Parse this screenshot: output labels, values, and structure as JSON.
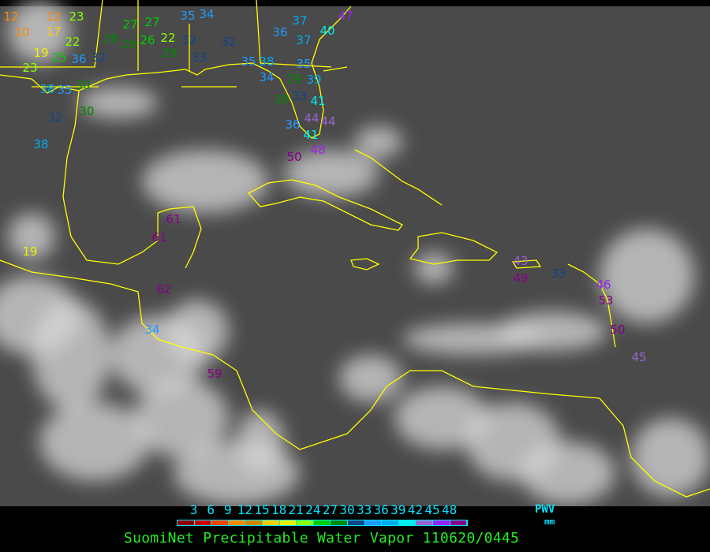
{
  "map": {
    "type": "satellite infrared image with GPS precipitable water station overlay",
    "background_color": "#4a4a4a",
    "coastline_color": "#ffff00",
    "stations": [
      {
        "value": 12
      },
      {
        "value": 12
      },
      {
        "value": 23
      },
      {
        "value": 10
      },
      {
        "value": 17
      },
      {
        "value": 22
      },
      {
        "value": 19
      },
      {
        "value": 25
      },
      {
        "value": 36
      },
      {
        "value": 23
      },
      {
        "value": 38
      },
      {
        "value": 35
      },
      {
        "value": 30
      },
      {
        "value": 32
      },
      {
        "value": 28
      },
      {
        "value": 29
      },
      {
        "value": 27
      },
      {
        "value": 27
      },
      {
        "value": 26
      },
      {
        "value": 22
      },
      {
        "value": 29
      },
      {
        "value": 32
      },
      {
        "value": 32
      },
      {
        "value": 33
      },
      {
        "value": 35
      },
      {
        "value": 34
      },
      {
        "value": 36
      },
      {
        "value": 37
      },
      {
        "value": 37
      },
      {
        "value": 40
      },
      {
        "value": 47
      },
      {
        "value": 35
      },
      {
        "value": 38
      },
      {
        "value": 34
      },
      {
        "value": 35
      },
      {
        "value": 29
      },
      {
        "value": 39
      },
      {
        "value": 33
      },
      {
        "value": 30
      },
      {
        "value": 41
      },
      {
        "value": 44
      },
      {
        "value": 44
      },
      {
        "value": 36
      },
      {
        "value": 41
      },
      {
        "value": 48
      },
      {
        "value": 50
      },
      {
        "value": 38
      },
      {
        "value": 32
      },
      {
        "value": 30
      },
      {
        "value": 61
      },
      {
        "value": 61
      },
      {
        "value": 19
      },
      {
        "value": 62
      },
      {
        "value": 34
      },
      {
        "value": 59
      },
      {
        "value": 43
      },
      {
        "value": 49
      },
      {
        "value": 33
      },
      {
        "value": 46
      },
      {
        "value": 53
      },
      {
        "value": 50
      },
      {
        "value": 45
      }
    ]
  },
  "legend": {
    "ticks": [
      "3",
      "6",
      "9",
      "12",
      "15",
      "18",
      "21",
      "24",
      "27",
      "30",
      "33",
      "36",
      "39",
      "42",
      "45",
      "48"
    ],
    "unit_top": "PWV",
    "unit_bottom": "mm",
    "colors": [
      "#8b0000",
      "#cc0000",
      "#ee4400",
      "#ff8800",
      "#cc8800",
      "#ffcc00",
      "#eeee00",
      "#88ff00",
      "#00cc00",
      "#008800",
      "#114488",
      "#2299ff",
      "#00aaee",
      "#00eeee",
      "#9966cc",
      "#9922ee",
      "#880088"
    ]
  },
  "title": "SuomiNet Precipitable Water Vapor 110620/0445"
}
